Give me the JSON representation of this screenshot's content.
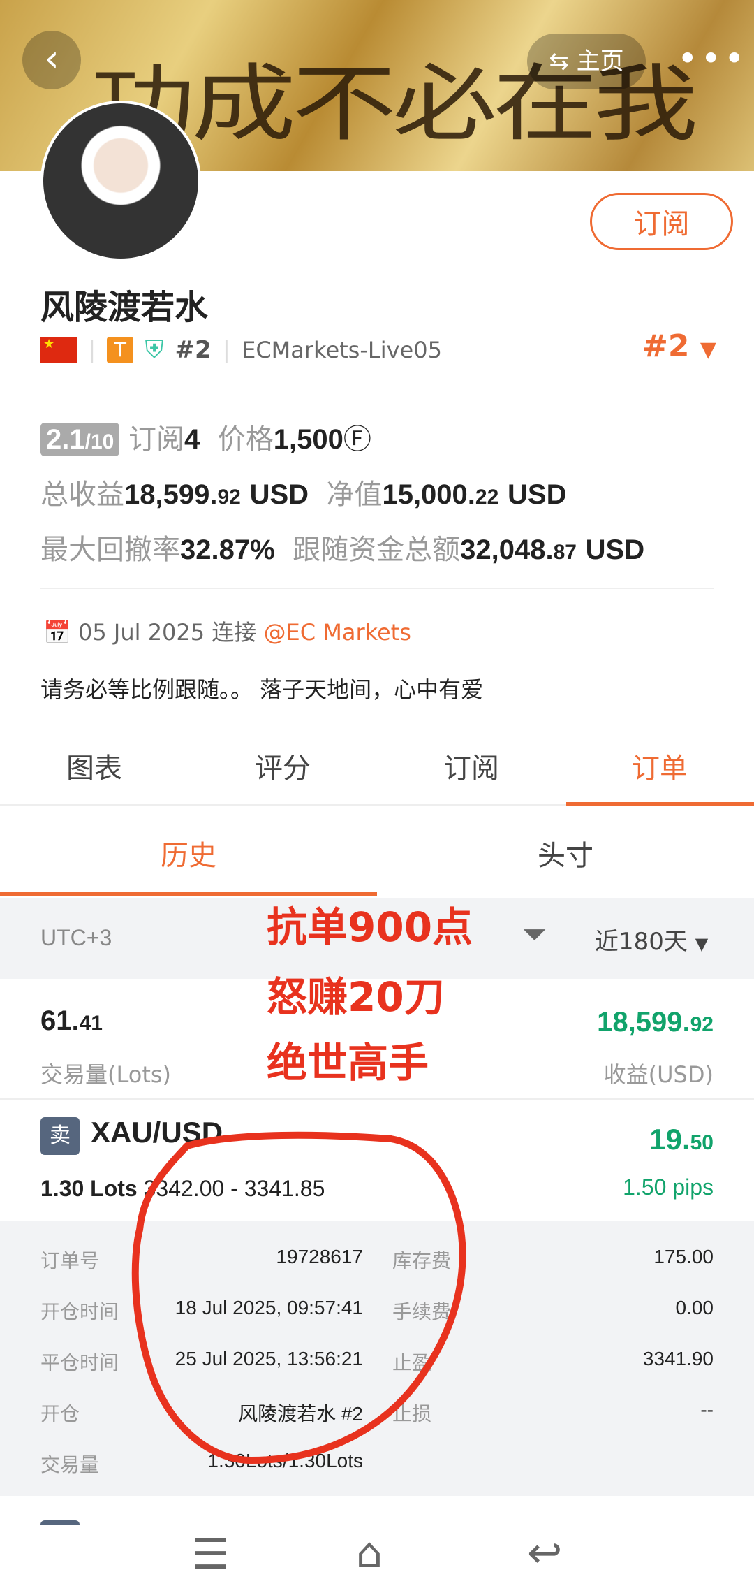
{
  "header": {
    "calligraphy": "功成不必在我",
    "home_label": "主页"
  },
  "profile": {
    "name": "风陵渡若水",
    "rank_tag": "#2",
    "server": "ECMarkets-Live05",
    "rank": "#2",
    "subscribe_label": "订阅",
    "flag": "CN",
    "level_badge": "T"
  },
  "stats": {
    "score": "2.1",
    "score_max": "/10",
    "subs_label": "订阅",
    "subs": "4",
    "price_label": "价格",
    "price": "1,500",
    "total_profit_label": "总收益",
    "total_profit_int": "18,599.",
    "total_profit_dec": "92",
    "total_profit_unit": "USD",
    "equity_label": "净值",
    "equity_int": "15,000.",
    "equity_dec": "22",
    "equity_unit": "USD",
    "drawdown_label": "最大回撤率",
    "drawdown": "32.87%",
    "follow_label": "跟随资金总额",
    "follow_int": "32,048.",
    "follow_dec": "87",
    "follow_unit": "USD"
  },
  "connect": {
    "date": "05 Jul 2025",
    "label": "连接",
    "broker": "@EC Markets"
  },
  "bio": "请务必等比例跟随。。 落子天地间，心中有爱",
  "tabs": [
    "图表",
    "评分",
    "订阅",
    "订单"
  ],
  "active_tab": "订单",
  "subtabs": [
    "历史",
    "头寸"
  ],
  "filter": {
    "timezone": "UTC+3",
    "period": "近180天"
  },
  "summary": {
    "volume_int": "61.",
    "volume_dec": "41",
    "volume_label": "交易量(Lots)",
    "profit_int": "18,599.",
    "profit_dec": "92",
    "profit_label": "收益(USD)"
  },
  "order": {
    "side": "卖",
    "symbol": "XAU/USD",
    "lots": "1.30 Lots",
    "prices": "3342.00 - 3341.85",
    "profit_int": "19.",
    "profit_dec": "50",
    "pips": "1.50 pips",
    "details": [
      {
        "l": "订单号",
        "v": "19728617",
        "l2": "库存费",
        "v2": "175.00"
      },
      {
        "l": "开仓时间",
        "v": "18 Jul 2025, 09:57:41",
        "l2": "手续费",
        "v2": "0.00"
      },
      {
        "l": "平仓时间",
        "v": "25 Jul 2025, 13:56:21",
        "l2": "止盈",
        "v2": "3341.90"
      },
      {
        "l": "开仓",
        "v": "风陵渡若水  #2",
        "l2": "止损",
        "v2": "--"
      },
      {
        "l": "交易量",
        "v": "1.30Lots/1.30Lots",
        "l2": "",
        "v2": ""
      }
    ]
  },
  "annotation": {
    "lines": [
      "抗单900点",
      "怒赚20刀",
      "绝世高手"
    ],
    "color": "#e8321e"
  },
  "colors": {
    "accent": "#ef6b33",
    "profit": "#11a36b",
    "red_mark": "#e8321e"
  }
}
